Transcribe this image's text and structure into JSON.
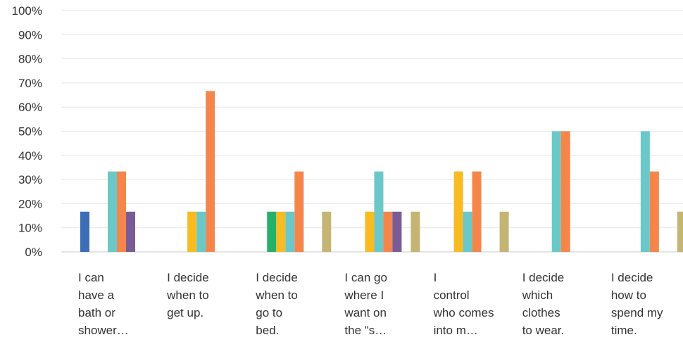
{
  "chart_data": {
    "type": "bar",
    "title": "",
    "xlabel": "",
    "ylabel": "",
    "ylim": [
      0,
      100
    ],
    "yticks": [
      "0%",
      "10%",
      "20%",
      "30%",
      "40%",
      "50%",
      "60%",
      "70%",
      "80%",
      "90%",
      "100%"
    ],
    "grid": true,
    "legend": "none",
    "categories": [
      "I can\nhave a\nbath or\nshower…",
      "I decide\nwhen to\nget up.",
      "I decide\nwhen to\ngo to\nbed.",
      "I can go\nwhere I\nwant on\nthe \"s…",
      "I\ncontrol\nwho comes\ninto m…",
      "I decide\nwhich\nclothes\nto wear.",
      "I decide\nhow to\nspend my\ntime."
    ],
    "series": [
      {
        "color": "#3d6db5",
        "values": [
          16.67,
          0,
          0,
          0,
          0,
          0,
          0
        ]
      },
      {
        "color": "#26b06b",
        "values": [
          0,
          0,
          16.67,
          0,
          0,
          0,
          0
        ]
      },
      {
        "color": "#f8bb21",
        "values": [
          0,
          16.67,
          16.67,
          16.67,
          33.33,
          0,
          0
        ]
      },
      {
        "color": "#6bc8c8",
        "values": [
          33.33,
          16.67,
          16.67,
          33.33,
          16.67,
          50,
          50
        ]
      },
      {
        "color": "#f5864b",
        "values": [
          33.33,
          66.67,
          33.33,
          16.67,
          33.33,
          50,
          33.33
        ]
      },
      {
        "color": "#7b5b95",
        "values": [
          16.67,
          0,
          0,
          16.67,
          0,
          0,
          0
        ]
      },
      {
        "color": "#8c8c8c",
        "values": [
          0,
          0,
          0,
          0,
          0,
          0,
          0
        ]
      },
      {
        "color": "#c5b574",
        "values": [
          0,
          0,
          16.67,
          16.67,
          16.67,
          0,
          16.67
        ]
      }
    ]
  }
}
